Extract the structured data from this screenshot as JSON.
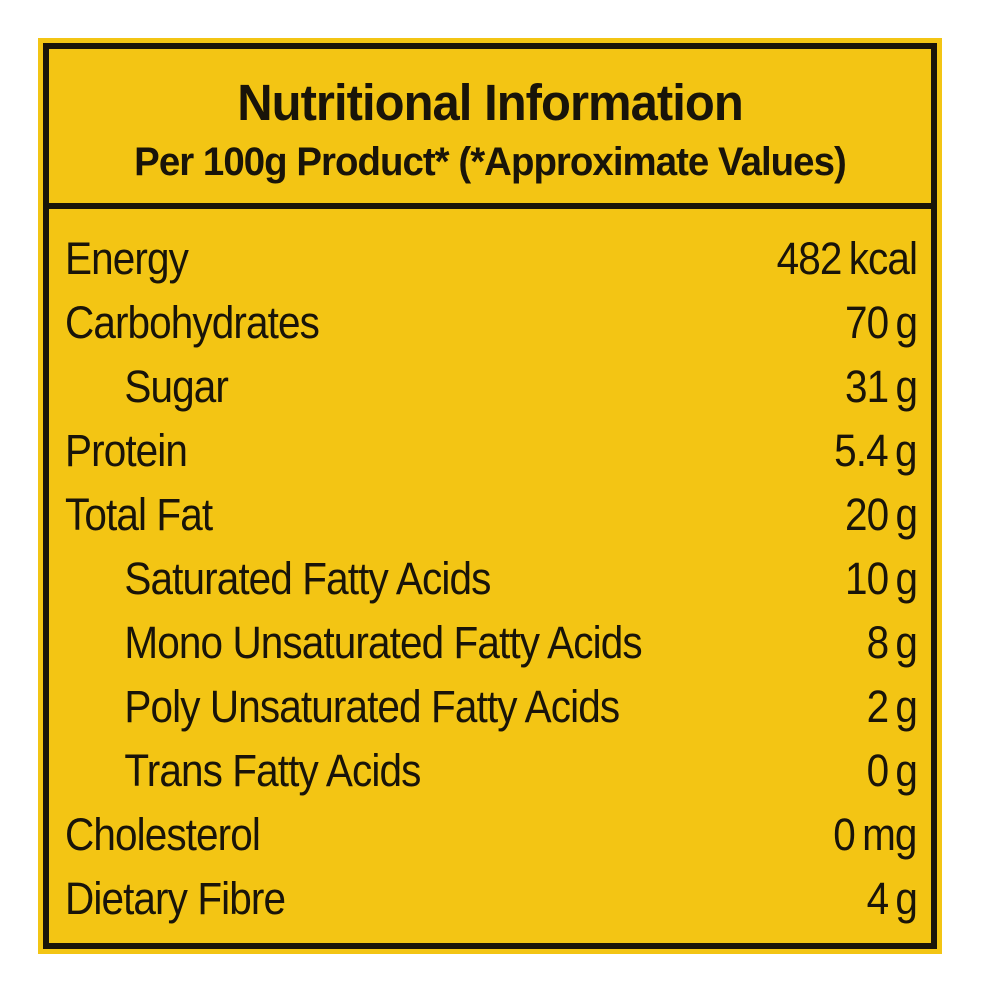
{
  "colors": {
    "page": "#ffffff",
    "background": "#f3c514",
    "border": "#191409",
    "text": "#191409"
  },
  "label": {
    "title": "Nutritional Information",
    "subtitle": "Per 100g Product* (*Approximate Values)",
    "rows": [
      {
        "label": "Energy",
        "value": "482",
        "unit": "kcal",
        "indent": false
      },
      {
        "label": "Carbohydrates",
        "value": "70",
        "unit": "g",
        "indent": false
      },
      {
        "label": "Sugar",
        "value": "31",
        "unit": "g",
        "indent": true
      },
      {
        "label": "Protein",
        "value": "5.4",
        "unit": "g",
        "indent": false
      },
      {
        "label": "Total Fat",
        "value": "20",
        "unit": "g",
        "indent": false
      },
      {
        "label": "Saturated Fatty Acids",
        "value": "10",
        "unit": "g",
        "indent": true
      },
      {
        "label": "Mono Unsaturated Fatty Acids",
        "value": "8",
        "unit": "g",
        "indent": true
      },
      {
        "label": "Poly Unsaturated Fatty Acids",
        "value": "2",
        "unit": "g",
        "indent": true
      },
      {
        "label": "Trans Fatty Acids",
        "value": "0",
        "unit": "g",
        "indent": true
      },
      {
        "label": "Cholesterol",
        "value": "0",
        "unit": "mg",
        "indent": false
      },
      {
        "label": "Dietary Fibre",
        "value": "4",
        "unit": "g",
        "indent": false
      }
    ]
  }
}
